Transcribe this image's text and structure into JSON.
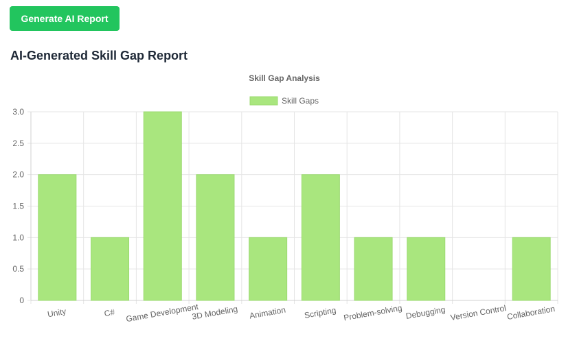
{
  "header": {
    "generate_button_label": "Generate AI Report",
    "report_title": "AI-Generated Skill Gap Report"
  },
  "colors": {
    "button": "#22c55e",
    "bar_fill": "#a9e67e",
    "bar_border": "#9ad96f",
    "grid": "#e5e5e5",
    "text": "#666666",
    "title": "#1f2937"
  },
  "chart_data": {
    "type": "bar",
    "title": "Skill Gap Analysis",
    "legend": {
      "position": "top",
      "entries": [
        "Skill Gaps"
      ]
    },
    "categories": [
      "Unity",
      "C#",
      "Game Development",
      "3D Modeling",
      "Animation",
      "Scripting",
      "Problem-solving",
      "Debugging",
      "Version Control",
      "Collaboration"
    ],
    "series": [
      {
        "name": "Skill Gaps",
        "values": [
          2,
          1,
          3,
          2,
          1,
          2,
          1,
          1,
          0,
          1
        ]
      }
    ],
    "ylim": [
      0,
      3
    ],
    "yticks": [
      "0",
      "0.5",
      "1.0",
      "1.5",
      "2.0",
      "2.5",
      "3.0"
    ],
    "grid": true,
    "xlabel": "",
    "ylabel": ""
  }
}
